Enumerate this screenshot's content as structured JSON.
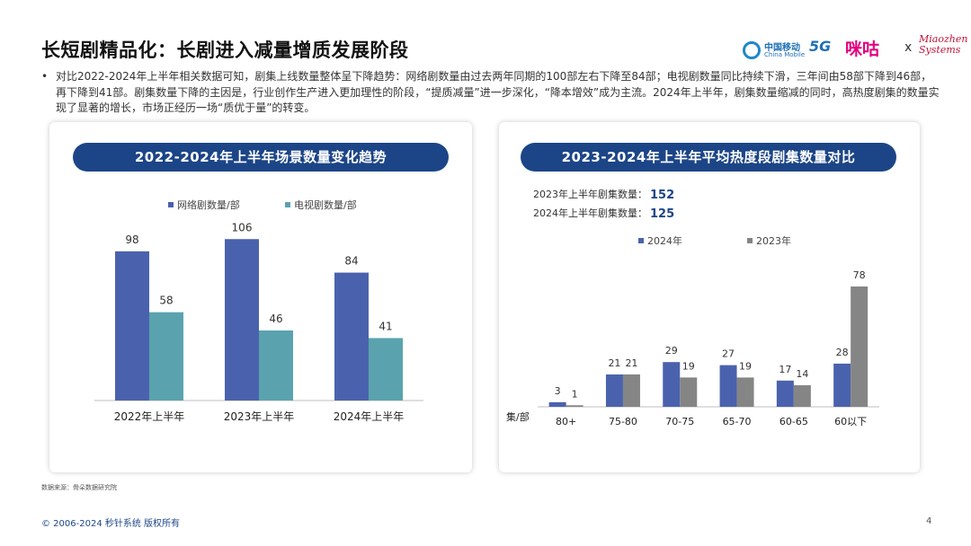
{
  "page": {
    "title": "长短剧精品化：长剧进入减量增质发展阶段",
    "summary": "对比2022-2024年上半年相关数据可知，剧集上线数量整体呈下降趋势：网络剧数量由过去两年同期的100部左右下降至84部；电视剧数量同比持续下滑，三年间由58部下降到46部，再下降到41部。剧集数量下降的主因是，行业创作生产进入更加理性的阶段，“提质减量”进一步深化，“降本增效”成为主流。2024年上半年，剧集数量缩减的同时，高热度剧集的数量实现了显著的增长，市场正经历一场“质优于量”的转变。",
    "bullet": "•",
    "source_note": "数据来源：骨朵数据研究院",
    "footer": "© 2006-2024 秒针系统 版权所有",
    "page_number": "4"
  },
  "logos": {
    "china_mobile_cn": "中国移动",
    "china_mobile_en": "China Mobile",
    "five_g": "5G",
    "migu": "咪咕",
    "x": "x",
    "miaozhen_line1": "Miaozhen",
    "miaozhen_line2": "Systems"
  },
  "colors": {
    "dark_blue": "#1c4587",
    "series_net": "#4a62ad",
    "series_tv": "#5aa3ae",
    "series_2024": "#4a62ad",
    "series_2023": "#858585"
  },
  "chart_data": [
    {
      "type": "bar",
      "title": "2022-2024年上半年场景数量变化趋势",
      "categories": [
        "2022年上半年",
        "2023年上半年",
        "2024年上半年"
      ],
      "series": [
        {
          "name": "网络剧数量/部",
          "values": [
            98,
            106,
            84
          ]
        },
        {
          "name": "电视剧数量/部",
          "values": [
            58,
            46,
            41
          ]
        }
      ],
      "xlabel": "",
      "ylabel": "",
      "ylim": [
        0,
        115
      ],
      "grid": false,
      "legend": "top"
    },
    {
      "type": "bar",
      "title": "2023-2024年上半年平均热度段剧集数量对比",
      "annotations": [
        {
          "label": "2023年上半年剧集数量：",
          "value": "152"
        },
        {
          "label": "2024年上半年剧集数量：",
          "value": "125"
        }
      ],
      "categories": [
        "80+",
        "75-80",
        "70-75",
        "65-70",
        "60-65",
        "60以下"
      ],
      "series": [
        {
          "name": "2024年",
          "values": [
            3,
            21,
            29,
            27,
            17,
            28
          ]
        },
        {
          "name": "2023年",
          "values": [
            1,
            21,
            19,
            19,
            14,
            78
          ]
        }
      ],
      "xlabel": "集/部",
      "ylabel": "",
      "ylim": [
        0,
        85
      ],
      "grid": false,
      "legend": "top"
    }
  ]
}
